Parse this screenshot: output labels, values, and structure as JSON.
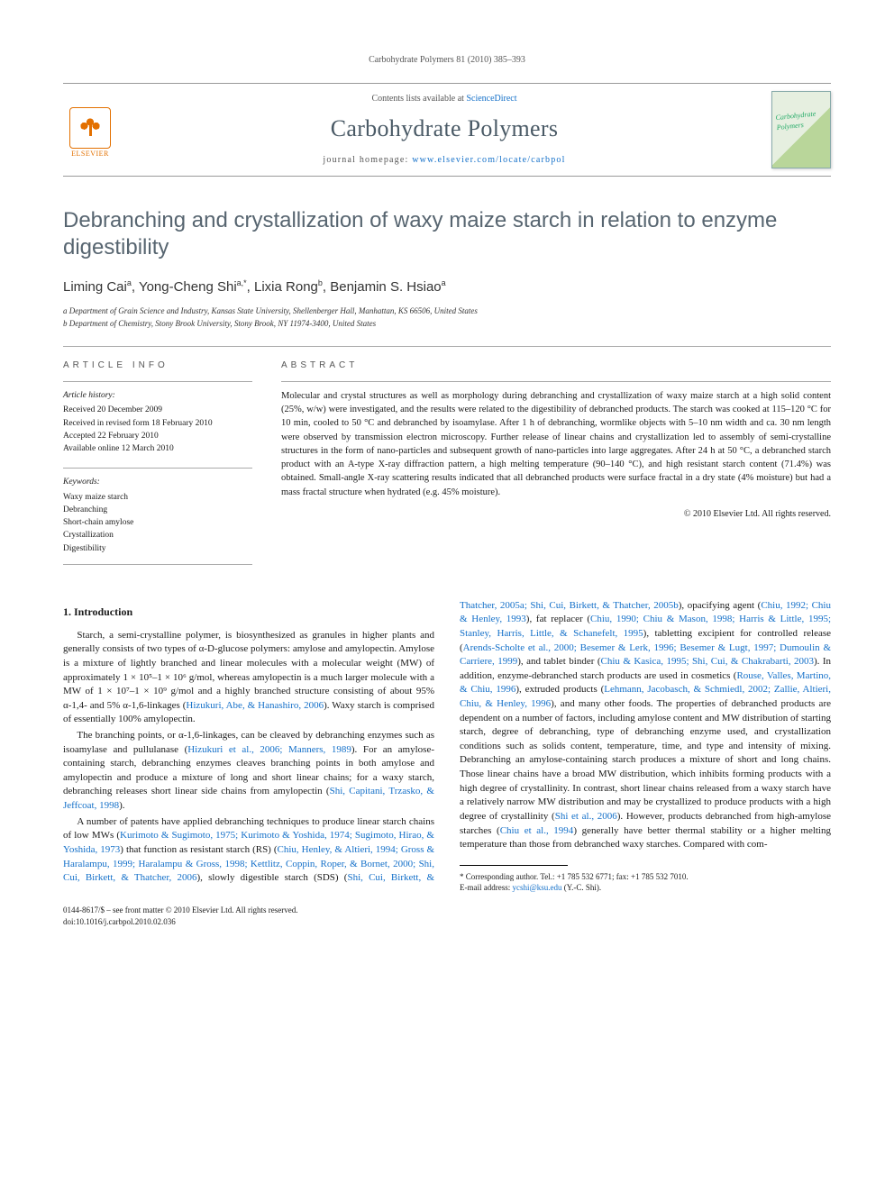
{
  "running_head": "Carbohydrate Polymers 81 (2010) 385–393",
  "masthead": {
    "contents_prefix": "Contents lists available at ",
    "contents_link": "ScienceDirect",
    "journal_name": "Carbohydrate Polymers",
    "homepage_prefix": "journal homepage: ",
    "homepage_url": "www.elsevier.com/locate/carbpol",
    "publisher_label": "ELSEVIER",
    "cover_label": "Carbohydrate Polymers"
  },
  "title": "Debranching and crystallization of waxy maize starch in relation to enzyme digestibility",
  "authors_html": "Liming Cai<sup>a</sup>, Yong-Cheng Shi<sup>a,*</sup>, Lixia Rong<sup>b</sup>, Benjamin S. Hsiao<sup>a</sup>",
  "affiliations": [
    "a Department of Grain Science and Industry, Kansas State University, Shellenberger Hall, Manhattan, KS 66506, United States",
    "b Department of Chemistry, Stony Brook University, Stony Brook, NY 11974-3400, United States"
  ],
  "info": {
    "label": "ARTICLE INFO",
    "history_head": "Article history:",
    "history": [
      "Received 20 December 2009",
      "Received in revised form 18 February 2010",
      "Accepted 22 February 2010",
      "Available online 12 March 2010"
    ],
    "keywords_head": "Keywords:",
    "keywords": [
      "Waxy maize starch",
      "Debranching",
      "Short-chain amylose",
      "Crystallization",
      "Digestibility"
    ]
  },
  "abstract": {
    "label": "ABSTRACT",
    "text": "Molecular and crystal structures as well as morphology during debranching and crystallization of waxy maize starch at a high solid content (25%, w/w) were investigated, and the results were related to the digestibility of debranched products. The starch was cooked at 115–120 °C for 10 min, cooled to 50 °C and debranched by isoamylase. After 1 h of debranching, wormlike objects with 5–10 nm width and ca. 30 nm length were observed by transmission electron microscopy. Further release of linear chains and crystallization led to assembly of semi-crystalline structures in the form of nano-particles and subsequent growth of nano-particles into large aggregates. After 24 h at 50 °C, a debranched starch product with an A-type X-ray diffraction pattern, a high melting temperature (90–140 °C), and high resistant starch content (71.4%) was obtained. Small-angle X-ray scattering results indicated that all debranched products were surface fractal in a dry state (4% moisture) but had a mass fractal structure when hydrated (e.g. 45% moisture).",
    "copyright": "© 2010 Elsevier Ltd. All rights reserved."
  },
  "body": {
    "section_heading": "1. Introduction",
    "p1": "Starch, a semi-crystalline polymer, is biosynthesized as granules in higher plants and generally consists of two types of α-D-glucose polymers: amylose and amylopectin. Amylose is a mixture of lightly branched and linear molecules with a molecular weight (MW) of approximately 1 × 10⁵–1 × 10⁶ g/mol, whereas amylopectin is a much larger molecule with a MW of 1 × 10⁷–1 × 10⁹ g/mol and a highly branched structure consisting of about 95% α-1,4- and 5% α-1,6-linkages (",
    "p1_ref1": "Hizukuri, Abe, & Hanashiro, 2006",
    "p1_tail": "). Waxy starch is comprised of essentially 100% amylopectin.",
    "p2a": "The branching points, or α-1,6-linkages, can be cleaved by debranching enzymes such as isoamylase and pullulanase (",
    "p2_ref1": "Hizukuri et al., 2006; Manners, 1989",
    "p2b": "). For an amylose-containing starch, debranching enzymes cleaves branching points in both amylose and amylopectin and produce a mixture of long and short linear chains; for a waxy starch, debranching releases short linear side chains from amylopectin (",
    "p2_ref2": "Shi, Capitani, Trzasko, & Jeffcoat, 1998",
    "p2c": ").",
    "p3a": "A number of patents have applied debranching techniques to produce linear starch chains of low MWs (",
    "p3_ref1": "Kurimoto & Sugimoto, 1975; Kurimoto & Yoshida, 1974; Sugimoto, Hirao, & Yoshida, 1973",
    "p3b": ") that function as resistant starch (RS) (",
    "p3_ref2": "Chiu, Henley, & Altieri,",
    "p3c": " ",
    "p3_ref3": "1994; Gross & Haralampu, 1999; Haralampu & Gross, 1998; Kettlitz, Coppin, Roper, & Bornet, 2000; Shi, Cui, Birkett, & Thatcher, 2006",
    "p3d": "), slowly digestible starch (SDS) (",
    "p3_ref4": "Shi, Cui, Birkett, & Thatcher, 2005a; Shi, Cui, Birkett, & Thatcher, 2005b",
    "p3e": "), opacifying agent (",
    "p3_ref5": "Chiu, 1992; Chiu & Henley, 1993",
    "p3f": "), fat replacer (",
    "p3_ref6": "Chiu, 1990; Chiu & Mason, 1998; Harris & Little, 1995; Stanley, Harris, Little, & Schanefelt, 1995",
    "p3g": "), tabletting excipient for controlled release (",
    "p3_ref7": "Arends-Scholte et al., 2000; Besemer & Lerk, 1996; Besemer & Lugt, 1997; Dumoulin & Carriere, 1999",
    "p3h": "), and tablet binder (",
    "p3_ref8": "Chiu & Kasica, 1995; Shi, Cui, & Chakrabarti, 2003",
    "p3i": "). In addition, enzyme-debranched starch products are used in cosmetics (",
    "p3_ref9": "Rouse, Valles, Martino, & Chiu, 1996",
    "p3j": "), extruded products (",
    "p3_ref10": "Lehmann, Jacobasch, & Schmiedl, 2002; Zallie, Altieri, Chiu, & Henley, 1996",
    "p3k": "), and many other foods. The properties of debranched products are dependent on a number of factors, including amylose content and MW distribution of starting starch, degree of debranching, type of debranching enzyme used, and crystallization conditions such as solids content, temperature, time, and type and intensity of mixing. Debranching an amylose-containing starch produces a mixture of short and long chains. Those linear chains have a broad MW distribution, which inhibits forming products with a high degree of crystallinity. In contrast, short linear chains released from a waxy starch have a relatively narrow MW distribution and may be crystallized to produce products with a high degree of crystallinity (",
    "p3_ref11": "Shi et al., 2006",
    "p3l": "). However, products debranched from high-amylose starches (",
    "p3_ref12": "Chiu et al., 1994",
    "p3m": ") generally have better thermal stability or a higher melting temperature than those from debranched waxy starches. Compared with com-"
  },
  "footnotes": {
    "corr": "* Corresponding author. Tel.: +1 785 532 6771; fax: +1 785 532 7010.",
    "email_label": "E-mail address: ",
    "email": "ycshi@ksu.edu",
    "email_tail": " (Y.-C. Shi)."
  },
  "footer": {
    "line1": "0144-8617/$ – see front matter © 2010 Elsevier Ltd. All rights reserved.",
    "line2": "doi:10.1016/j.carbpol.2010.02.036"
  },
  "colors": {
    "link": "#1470c9",
    "accent": "#576570",
    "orange": "#e37000"
  }
}
